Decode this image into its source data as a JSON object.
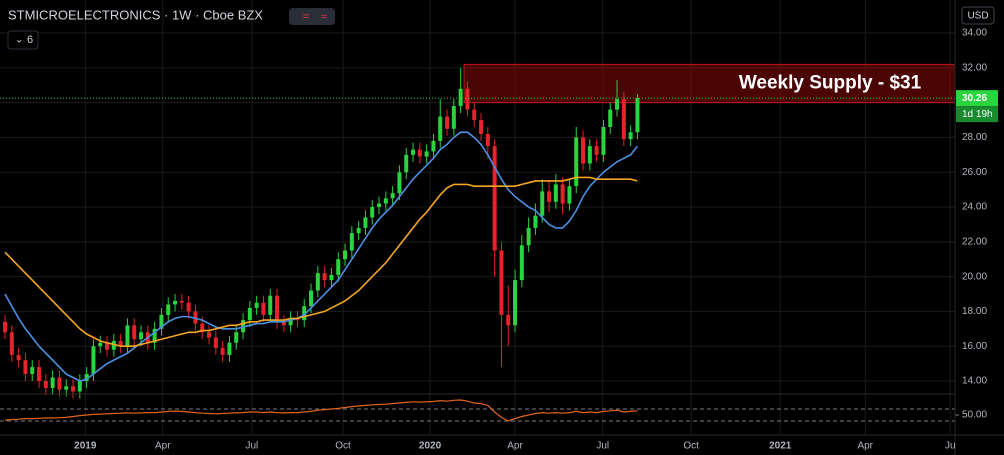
{
  "chart_data": {
    "type": "candlestick",
    "title": "STMICROELECTRONICS · 1W · Cboe BZX",
    "indicator_count": 6,
    "currency": "USD",
    "countdown": "1d 19h",
    "up_color": "#2bd33f",
    "down_color": "#e3242b",
    "open": [
      17.4,
      16.8,
      15.5,
      15.2,
      14.4,
      14.8,
      14.0,
      13.6,
      14.2,
      13.5,
      13.7,
      13.4,
      14.0,
      14.4,
      16.0,
      16.2,
      15.8,
      16.3,
      16.0,
      17.2,
      16.4,
      16.8,
      16.2,
      17.0,
      17.8,
      18.4,
      18.6,
      18.5,
      18.0,
      17.3,
      16.8,
      16.5,
      15.9,
      15.5,
      16.2,
      16.8,
      17.5,
      18.2,
      18.5,
      17.8,
      18.9,
      17.4,
      17.2,
      17.6,
      17.5,
      18.3,
      19.2,
      20.2,
      19.8,
      20.1,
      21.0,
      21.5,
      22.5,
      22.8,
      23.4,
      24.0,
      24.2,
      24.5,
      24.8,
      26.0,
      27.0,
      27.3,
      26.9,
      27.2,
      27.8,
      29.2,
      28.5,
      29.8,
      30.8,
      29.6,
      29.0,
      28.2,
      27.5,
      21.5,
      17.8,
      17.2,
      19.8,
      21.8,
      22.8,
      23.5,
      24.9,
      24.3,
      25.3,
      24.2,
      25.2,
      28.0,
      26.5,
      27.5,
      27.0,
      28.6,
      29.6,
      30.2,
      27.9,
      28.3
    ],
    "high": [
      17.8,
      17.2,
      15.9,
      15.6,
      15.2,
      15.2,
      14.4,
      14.6,
      14.6,
      14.1,
      14.1,
      14.4,
      14.8,
      16.4,
      16.6,
      16.6,
      16.7,
      16.7,
      17.6,
      17.6,
      17.2,
      17.2,
      17.4,
      18.2,
      18.8,
      19.0,
      19.0,
      18.9,
      18.4,
      17.7,
      17.2,
      16.9,
      16.3,
      16.6,
      17.2,
      17.9,
      18.6,
      18.9,
      18.9,
      19.3,
      19.3,
      17.8,
      18.0,
      18.0,
      18.7,
      19.6,
      20.6,
      20.6,
      20.5,
      21.4,
      21.9,
      22.9,
      23.2,
      23.8,
      24.4,
      24.6,
      24.9,
      25.2,
      26.4,
      27.4,
      27.7,
      27.7,
      27.6,
      28.2,
      30.2,
      29.6,
      30.2,
      32.0,
      31.2,
      30.0,
      29.4,
      28.6,
      27.9,
      22.0,
      19.5,
      20.4,
      22.4,
      23.4,
      24.2,
      25.6,
      25.5,
      25.9,
      25.7,
      25.6,
      28.6,
      28.4,
      27.9,
      27.9,
      29.0,
      30.0,
      31.3,
      30.6,
      28.7,
      30.5
    ],
    "low": [
      16.4,
      15.1,
      14.8,
      14.0,
      14.0,
      13.6,
      13.2,
      13.2,
      13.1,
      13.1,
      13.0,
      13.0,
      13.6,
      14.0,
      15.6,
      15.4,
      15.4,
      15.6,
      15.6,
      16.0,
      16.0,
      15.8,
      15.8,
      16.6,
      17.4,
      18.0,
      18.1,
      17.6,
      16.9,
      16.4,
      16.1,
      15.5,
      15.1,
      15.1,
      15.8,
      16.4,
      17.1,
      17.8,
      17.4,
      17.4,
      17.0,
      16.8,
      16.8,
      17.1,
      17.1,
      17.9,
      18.8,
      19.4,
      19.4,
      19.7,
      20.6,
      21.1,
      22.1,
      22.4,
      23.0,
      23.6,
      23.8,
      24.1,
      24.4,
      25.6,
      26.6,
      26.5,
      26.5,
      26.8,
      27.4,
      28.1,
      28.1,
      29.4,
      29.2,
      28.6,
      27.8,
      26.8,
      20.0,
      14.8,
      16.0,
      16.8,
      19.4,
      21.4,
      22.4,
      23.1,
      23.7,
      23.9,
      23.6,
      23.8,
      24.8,
      26.1,
      26.1,
      26.6,
      26.6,
      28.2,
      29.2,
      27.5,
      27.5,
      27.9
    ],
    "close": [
      16.8,
      15.5,
      15.2,
      14.4,
      14.8,
      14.0,
      13.6,
      14.2,
      13.5,
      13.7,
      13.4,
      14.0,
      14.4,
      16.0,
      16.2,
      15.8,
      16.3,
      16.0,
      17.2,
      16.4,
      16.8,
      16.2,
      17.0,
      17.8,
      18.4,
      18.6,
      18.5,
      18.0,
      17.3,
      16.8,
      16.5,
      15.9,
      15.5,
      16.2,
      16.8,
      17.5,
      18.2,
      18.5,
      17.8,
      18.9,
      17.4,
      17.2,
      17.6,
      17.5,
      18.3,
      19.2,
      20.2,
      19.8,
      20.1,
      21.0,
      21.5,
      22.5,
      22.8,
      23.4,
      24.0,
      24.2,
      24.5,
      24.8,
      26.0,
      27.0,
      27.3,
      26.9,
      27.2,
      27.8,
      29.2,
      28.5,
      29.8,
      30.8,
      29.6,
      29.0,
      28.2,
      27.5,
      21.5,
      17.8,
      17.2,
      19.8,
      21.8,
      22.8,
      23.5,
      24.9,
      24.3,
      25.3,
      24.2,
      25.2,
      28.0,
      26.5,
      27.5,
      27.0,
      28.6,
      29.6,
      30.2,
      27.9,
      28.3,
      30.26
    ],
    "series": [
      {
        "color": "#4a90e2",
        "values": [
          19.0,
          18.3,
          17.6,
          17.0,
          16.5,
          16.0,
          15.6,
          15.2,
          14.8,
          14.4,
          14.2,
          14.0,
          14.1,
          14.4,
          14.7,
          15.0,
          15.2,
          15.4,
          15.6,
          15.9,
          16.2,
          16.5,
          16.8,
          17.1,
          17.4,
          17.6,
          17.7,
          17.7,
          17.6,
          17.5,
          17.3,
          17.1,
          17.0,
          17.0,
          17.0,
          17.1,
          17.2,
          17.3,
          17.3,
          17.4,
          17.4,
          17.4,
          17.5,
          17.6,
          17.8,
          18.2,
          18.6,
          19.0,
          19.4,
          19.8,
          20.4,
          21.0,
          21.6,
          22.2,
          22.8,
          23.3,
          23.7,
          24.1,
          24.6,
          25.1,
          25.6,
          26.0,
          26.4,
          26.8,
          27.3,
          27.6,
          28.0,
          28.3,
          28.3,
          28.0,
          27.6,
          27.0,
          26.3,
          25.6,
          25.0,
          24.6,
          24.3,
          24.0,
          23.8,
          23.4,
          23.0,
          22.8,
          22.8,
          23.2,
          23.8,
          24.6,
          25.2,
          25.6,
          26.0,
          26.3,
          26.6,
          26.8,
          27.0,
          27.5
        ]
      },
      {
        "color": "#f5a623",
        "values": [
          21.4,
          21.0,
          20.6,
          20.2,
          19.8,
          19.4,
          19.0,
          18.6,
          18.2,
          17.8,
          17.4,
          17.0,
          16.7,
          16.5,
          16.3,
          16.2,
          16.1,
          16.0,
          16.0,
          16.0,
          16.1,
          16.2,
          16.3,
          16.4,
          16.5,
          16.6,
          16.7,
          16.8,
          16.8,
          16.9,
          16.9,
          17.0,
          17.1,
          17.2,
          17.2,
          17.3,
          17.4,
          17.4,
          17.5,
          17.5,
          17.5,
          17.5,
          17.6,
          17.6,
          17.7,
          17.8,
          17.9,
          18.0,
          18.2,
          18.4,
          18.6,
          18.9,
          19.2,
          19.6,
          20.0,
          20.4,
          20.8,
          21.3,
          21.8,
          22.3,
          22.8,
          23.3,
          23.7,
          24.2,
          24.7,
          25.1,
          25.3,
          25.3,
          25.3,
          25.2,
          25.2,
          25.2,
          25.2,
          25.2,
          25.2,
          25.2,
          25.3,
          25.4,
          25.5,
          25.5,
          25.5,
          25.5,
          25.5,
          25.6,
          25.7,
          25.7,
          25.7,
          25.6,
          25.6,
          25.6,
          25.6,
          25.6,
          25.6,
          25.5
        ]
      }
    ],
    "zone": {
      "top": 32.2,
      "bottom": 30.0,
      "label": "Weekly Supply - $31",
      "color": "#8b0a0a"
    },
    "xlim": [
      -0.74,
      139.7
    ],
    "ylim": [
      13.31,
      35.9
    ],
    "yticks": [
      {
        "value": 14,
        "label": "14.00"
      },
      {
        "value": 16,
        "label": "16.00"
      },
      {
        "value": 18,
        "label": "18.00"
      },
      {
        "value": 20,
        "label": "20.00"
      },
      {
        "value": 22,
        "label": "22.00"
      },
      {
        "value": 24,
        "label": "24.00"
      },
      {
        "value": 26,
        "label": "26.00"
      },
      {
        "value": 28,
        "label": "28.00"
      },
      {
        "value": 30,
        "label": "30.00"
      },
      {
        "value": 32,
        "label": "32.00"
      },
      {
        "value": 34,
        "label": "34.00"
      }
    ],
    "xticks": [
      {
        "value": 11.8,
        "label": "2019"
      },
      {
        "value": 23.2,
        "label": "Apr"
      },
      {
        "value": 36.3,
        "label": "Jul"
      },
      {
        "value": 49.7,
        "label": "Oct"
      },
      {
        "value": 62.5,
        "label": "2020"
      },
      {
        "value": 75,
        "label": "Apr"
      },
      {
        "value": 87.9,
        "label": "Jul"
      },
      {
        "value": 100.9,
        "label": "Oct"
      },
      {
        "value": 114,
        "label": "2021"
      },
      {
        "value": 126.5,
        "label": "Apr"
      },
      {
        "value": 139,
        "label": "Ju"
      }
    ],
    "grid": true,
    "indicator": {
      "color": "#e0651b",
      "values": [
        33,
        35,
        36,
        38,
        38,
        39,
        40,
        40,
        41,
        42,
        45,
        48,
        50,
        52,
        53,
        54,
        55,
        56,
        57,
        56,
        57,
        58,
        58,
        60,
        62,
        63,
        62,
        60,
        58,
        56,
        55,
        54,
        55,
        56,
        57,
        58,
        60,
        60,
        58,
        60,
        58,
        57,
        58,
        58,
        60,
        62,
        66,
        68,
        70,
        72,
        75,
        78,
        80,
        82,
        84,
        85,
        86,
        88,
        90,
        92,
        94,
        93,
        94,
        95,
        98,
        96,
        99,
        100,
        96,
        90,
        88,
        82,
        60,
        42,
        30,
        38,
        45,
        50,
        55,
        58,
        56,
        58,
        56,
        58,
        62,
        58,
        60,
        58,
        62,
        64,
        66,
        60,
        62,
        64
      ],
      "ylim": [
        0,
        100
      ],
      "yticks": [
        {
          "value": 50,
          "label": "50.00"
        }
      ],
      "bands": [
        70,
        30
      ]
    }
  }
}
